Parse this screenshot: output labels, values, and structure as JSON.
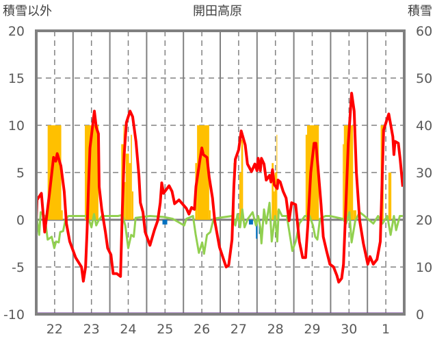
{
  "chart_data": {
    "type": "line",
    "title": "開田高原",
    "ylabel_left": "積雪以外",
    "ylabel_right": "積雪",
    "ylim_left": [
      -10,
      20
    ],
    "ylim_right": [
      0,
      60
    ],
    "yticks_left": [
      "20",
      "15",
      "10",
      "5",
      "0",
      "-5",
      "-10"
    ],
    "yticks_right": [
      "60",
      "50",
      "40",
      "30",
      "20",
      "10",
      "0"
    ],
    "x_unit": "day index (0 = 22nd, noon-centred)",
    "xlim": [
      -0.5,
      9.5
    ],
    "xtick_labels": [
      "22",
      "23",
      "24",
      "25",
      "26",
      "27",
      "28",
      "29",
      "30",
      "1"
    ],
    "grid": true,
    "colors": {
      "temperature": "#ff0000",
      "diff": "#92d050",
      "yellow_bars": "#ffc000",
      "blue_bars": "#0070c0",
      "snow_depth": "#7030a0",
      "grid": "#808080"
    },
    "series": [
      {
        "name": "red-line",
        "axis": "left",
        "points": [
          [
            -0.5,
            -0.1
          ],
          [
            -0.48,
            2.1
          ],
          [
            -0.36,
            2.8
          ],
          [
            -0.27,
            -1.3
          ],
          [
            -0.14,
            2.8
          ],
          [
            -0.03,
            6.6
          ],
          [
            0.03,
            6.2
          ],
          [
            0.07,
            7.0
          ],
          [
            0.17,
            5.7
          ],
          [
            0.26,
            3.0
          ],
          [
            0.32,
            -0.4
          ],
          [
            0.41,
            -2.3
          ],
          [
            0.57,
            -4.0
          ],
          [
            0.73,
            -5.0
          ],
          [
            0.78,
            -6.5
          ],
          [
            0.84,
            -5.0
          ],
          [
            0.88,
            -1.3
          ],
          [
            0.92,
            3.5
          ],
          [
            0.96,
            7.6
          ],
          [
            1.08,
            11.5
          ],
          [
            1.13,
            9.8
          ],
          [
            1.19,
            9.1
          ],
          [
            1.21,
            3.5
          ],
          [
            1.28,
            1.1
          ],
          [
            1.38,
            -1.3
          ],
          [
            1.44,
            -3.0
          ],
          [
            1.53,
            -3.7
          ],
          [
            1.59,
            -5.7
          ],
          [
            1.69,
            -5.7
          ],
          [
            1.79,
            -6.0
          ],
          [
            1.84,
            1.1
          ],
          [
            1.89,
            6.9
          ],
          [
            1.95,
            10.3
          ],
          [
            2.05,
            11.5
          ],
          [
            2.12,
            10.9
          ],
          [
            2.21,
            8.3
          ],
          [
            2.29,
            4.7
          ],
          [
            2.33,
            1.8
          ],
          [
            2.4,
            0.8
          ],
          [
            2.46,
            -1.3
          ],
          [
            2.59,
            -2.7
          ],
          [
            2.71,
            -1.1
          ],
          [
            2.8,
            -0.1
          ],
          [
            2.87,
            1.8
          ],
          [
            2.91,
            3.9
          ],
          [
            2.96,
            2.8
          ],
          [
            3.11,
            3.6
          ],
          [
            3.19,
            3.0
          ],
          [
            3.26,
            1.7
          ],
          [
            3.38,
            2.1
          ],
          [
            3.58,
            1.2
          ],
          [
            3.65,
            0.6
          ],
          [
            3.72,
            1.3
          ],
          [
            3.8,
            1.1
          ],
          [
            3.84,
            3.5
          ],
          [
            3.95,
            6.4
          ],
          [
            4.0,
            7.6
          ],
          [
            4.04,
            6.9
          ],
          [
            4.14,
            6.6
          ],
          [
            4.2,
            4.5
          ],
          [
            4.29,
            2.3
          ],
          [
            4.35,
            -0.1
          ],
          [
            4.48,
            -2.9
          ],
          [
            4.66,
            -5.0
          ],
          [
            4.73,
            -4.8
          ],
          [
            4.82,
            -2.1
          ],
          [
            4.87,
            3.5
          ],
          [
            4.91,
            6.4
          ],
          [
            5.0,
            7.4
          ],
          [
            5.07,
            9.4
          ],
          [
            5.18,
            7.9
          ],
          [
            5.24,
            5.9
          ],
          [
            5.35,
            5.1
          ],
          [
            5.44,
            5.9
          ],
          [
            5.5,
            5.2
          ],
          [
            5.53,
            6.5
          ],
          [
            5.59,
            5.2
          ],
          [
            5.62,
            6.5
          ],
          [
            5.69,
            5.9
          ],
          [
            5.75,
            4.2
          ],
          [
            5.84,
            4.7
          ],
          [
            5.88,
            4.0
          ],
          [
            5.92,
            5.3
          ],
          [
            5.97,
            3.7
          ],
          [
            6.05,
            3.3
          ],
          [
            6.07,
            4.2
          ],
          [
            6.13,
            4.0
          ],
          [
            6.21,
            3.0
          ],
          [
            6.29,
            2.3
          ],
          [
            6.37,
            -0.1
          ],
          [
            6.44,
            1.8
          ],
          [
            6.55,
            1.6
          ],
          [
            6.65,
            -2.3
          ],
          [
            6.74,
            -4.0
          ],
          [
            6.82,
            -4.0
          ],
          [
            6.88,
            -0.6
          ],
          [
            6.96,
            5.0
          ],
          [
            7.05,
            8.1
          ],
          [
            7.1,
            8.1
          ],
          [
            7.16,
            5.4
          ],
          [
            7.24,
            1.6
          ],
          [
            7.3,
            -1.8
          ],
          [
            7.39,
            -3.3
          ],
          [
            7.48,
            -4.7
          ],
          [
            7.58,
            -5.0
          ],
          [
            7.67,
            -5.9
          ],
          [
            7.72,
            -6.6
          ],
          [
            7.8,
            -6.2
          ],
          [
            7.85,
            -4.7
          ],
          [
            7.91,
            1.1
          ],
          [
            7.98,
            8.1
          ],
          [
            8.07,
            13.4
          ],
          [
            8.14,
            11.5
          ],
          [
            8.2,
            5.0
          ],
          [
            8.29,
            -0.1
          ],
          [
            8.39,
            -2.5
          ],
          [
            8.51,
            -4.7
          ],
          [
            8.57,
            -3.9
          ],
          [
            8.66,
            -4.7
          ],
          [
            8.76,
            -4.2
          ],
          [
            8.85,
            -2.3
          ],
          [
            8.94,
            9.5
          ],
          [
            9.08,
            11.2
          ],
          [
            9.19,
            8.8
          ],
          [
            9.22,
            6.9
          ],
          [
            9.25,
            8.3
          ],
          [
            9.34,
            8.1
          ],
          [
            9.39,
            6.4
          ],
          [
            9.46,
            3.5
          ]
        ]
      },
      {
        "name": "green-line",
        "axis": "left",
        "points": [
          [
            -0.5,
            0.5
          ],
          [
            -0.42,
            -1.6
          ],
          [
            -0.38,
            0.8
          ],
          [
            -0.27,
            0.4
          ],
          [
            -0.19,
            -2.1
          ],
          [
            -0.08,
            -1.8
          ],
          [
            -0.01,
            -3.0
          ],
          [
            0.04,
            -2.3
          ],
          [
            0.11,
            -2.4
          ],
          [
            0.15,
            -1.3
          ],
          [
            0.23,
            -1.2
          ],
          [
            0.3,
            0.1
          ],
          [
            0.38,
            0.4
          ],
          [
            0.48,
            0.4
          ],
          [
            0.85,
            0.4
          ],
          [
            0.94,
            -0.1
          ],
          [
            1.0,
            -0.8
          ],
          [
            1.07,
            0.6
          ],
          [
            1.13,
            -0.6
          ],
          [
            1.19,
            -0.1
          ],
          [
            1.28,
            0.4
          ],
          [
            1.72,
            0.4
          ],
          [
            1.84,
            0.5
          ],
          [
            1.92,
            -0.6
          ],
          [
            2.0,
            -3.0
          ],
          [
            2.08,
            -1.6
          ],
          [
            2.15,
            -1.8
          ],
          [
            2.2,
            0.2
          ],
          [
            2.59,
            0.4
          ],
          [
            2.96,
            0.3
          ],
          [
            3.21,
            0.1
          ],
          [
            3.52,
            -0.6
          ],
          [
            3.58,
            0.1
          ],
          [
            3.76,
            0.4
          ],
          [
            3.83,
            -1.5
          ],
          [
            3.92,
            -3.5
          ],
          [
            4.01,
            -2.4
          ],
          [
            4.06,
            -3.6
          ],
          [
            4.14,
            -1.6
          ],
          [
            4.23,
            -1.3
          ],
          [
            4.32,
            0.1
          ],
          [
            4.45,
            0.2
          ],
          [
            4.82,
            0.4
          ],
          [
            4.91,
            -0.6
          ],
          [
            4.97,
            0.6
          ],
          [
            5.04,
            -0.8
          ],
          [
            5.1,
            1.1
          ],
          [
            5.16,
            -0.8
          ],
          [
            5.25,
            0.1
          ],
          [
            5.38,
            0.8
          ],
          [
            5.47,
            -0.6
          ],
          [
            5.53,
            0.4
          ],
          [
            5.59,
            -0.8
          ],
          [
            5.62,
            -2.5
          ],
          [
            5.69,
            1.1
          ],
          [
            5.75,
            -0.4
          ],
          [
            5.84,
            1.8
          ],
          [
            5.9,
            -2.3
          ],
          [
            5.99,
            0.4
          ],
          [
            6.05,
            -2.3
          ],
          [
            6.09,
            1.1
          ],
          [
            6.18,
            0.4
          ],
          [
            6.31,
            0.4
          ],
          [
            6.46,
            -3.3
          ],
          [
            6.55,
            -2.3
          ],
          [
            6.65,
            -0.4
          ],
          [
            6.8,
            0.4
          ],
          [
            6.93,
            0.4
          ],
          [
            7.02,
            -0.6
          ],
          [
            7.08,
            -1.8
          ],
          [
            7.14,
            -2.1
          ],
          [
            7.21,
            0.1
          ],
          [
            7.36,
            0.4
          ],
          [
            7.48,
            0.4
          ],
          [
            7.83,
            0.1
          ],
          [
            7.92,
            -0.4
          ],
          [
            8.01,
            0.8
          ],
          [
            8.07,
            -2.4
          ],
          [
            8.17,
            -0.1
          ],
          [
            8.29,
            0.8
          ],
          [
            8.42,
            0.4
          ],
          [
            8.66,
            -0.4
          ],
          [
            8.79,
            0.4
          ],
          [
            8.91,
            -0.4
          ],
          [
            9.04,
            0.4
          ],
          [
            9.13,
            -1.6
          ],
          [
            9.22,
            0.4
          ],
          [
            9.28,
            -1.1
          ],
          [
            9.38,
            0.4
          ],
          [
            9.46,
            0.4
          ]
        ]
      },
      {
        "name": "yellow-bars",
        "axis": "left",
        "bars": [
          [
            -0.19,
            0.18,
            10
          ],
          [
            0.18,
            0.22,
            1
          ],
          [
            0.82,
            1.19,
            10
          ],
          [
            1.81,
            1.87,
            8
          ],
          [
            1.87,
            1.89,
            10
          ],
          [
            1.89,
            1.93,
            4
          ],
          [
            1.93,
            2.02,
            7
          ],
          [
            2.02,
            2.07,
            6
          ],
          [
            2.07,
            2.1,
            9
          ],
          [
            2.1,
            2.14,
            3
          ],
          [
            3.82,
            3.87,
            6
          ],
          [
            3.87,
            4.2,
            10
          ],
          [
            4.2,
            4.24,
            1
          ],
          [
            4.83,
            4.86,
            2.9
          ],
          [
            4.86,
            4.89,
            6
          ],
          [
            5.02,
            5.07,
            5
          ],
          [
            5.07,
            5.12,
            8.5
          ],
          [
            5.9,
            5.95,
            6
          ],
          [
            5.95,
            5.98,
            3
          ],
          [
            5.98,
            6.03,
            5
          ],
          [
            6.03,
            6.05,
            9
          ],
          [
            6.05,
            6.09,
            1
          ],
          [
            6.82,
            6.86,
            9
          ],
          [
            6.86,
            7.18,
            10
          ],
          [
            7.83,
            7.86,
            8
          ],
          [
            7.86,
            8.11,
            10
          ],
          [
            8.11,
            8.2,
            1
          ],
          [
            8.86,
            8.94,
            10
          ],
          [
            9.07,
            9.15,
            5
          ]
        ]
      },
      {
        "name": "blue-bars",
        "axis": "left",
        "bars": [
          [
            2.93,
            3.06,
            -0.5
          ],
          [
            5.28,
            5.39,
            -0.5
          ],
          [
            5.47,
            5.51,
            -2
          ],
          [
            5.55,
            5.59,
            -1.5
          ]
        ]
      },
      {
        "name": "snow-depth",
        "axis": "right",
        "constant": 0
      }
    ]
  }
}
